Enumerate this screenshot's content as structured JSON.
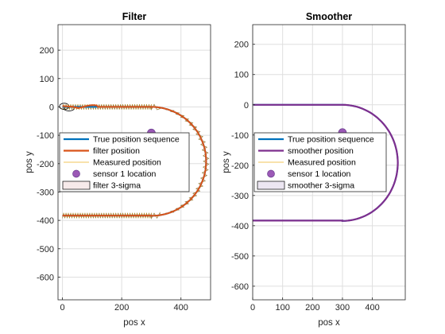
{
  "chart_data": [
    {
      "type": "line",
      "title": "Filter",
      "xlabel": "pos x",
      "ylabel": "pos y",
      "xlim": [
        -15,
        500
      ],
      "ylim": [
        -680,
        290
      ],
      "x_ticks": [
        0,
        200,
        400
      ],
      "y_ticks": [
        200,
        100,
        0,
        -100,
        -200,
        -300,
        -400,
        -500,
        -600
      ],
      "grid": true,
      "legend_position": "middle-left",
      "track": {
        "start_y": 0,
        "end_y": -383,
        "straight_until_x": 300,
        "turn_center_y": -192,
        "turn_radius_x": 185,
        "turn_radius_y": 192
      },
      "sensor_location": {
        "x": 300,
        "y": -92
      },
      "sigma_start": [
        {
          "x": 6,
          "y": 2,
          "w": 32,
          "h": 22
        },
        {
          "x": 22,
          "y": -6,
          "w": 34,
          "h": 16
        }
      ],
      "series": [
        {
          "name": "True position sequence",
          "color": "#0072BD",
          "kind": "line"
        },
        {
          "name": "filter position",
          "color": "#D95319",
          "kind": "line"
        },
        {
          "name": "Measured position",
          "color": "#EDB120",
          "kind": "line"
        },
        {
          "name": "sensor 1 location",
          "color": "#9B59B6",
          "kind": "marker"
        },
        {
          "name": "filter 3-sigma",
          "color": "#f7eaea",
          "kind": "patch"
        }
      ]
    },
    {
      "type": "line",
      "title": "Smoother",
      "xlabel": "pos x",
      "ylabel": "pos y",
      "xlim": [
        0,
        510
      ],
      "ylim": [
        -645,
        265
      ],
      "x_ticks": [
        0,
        100,
        200,
        300,
        400
      ],
      "y_ticks": [
        200,
        100,
        0,
        -100,
        -200,
        -300,
        -400,
        -500,
        -600
      ],
      "grid": true,
      "legend_position": "middle-left",
      "track": {
        "start_y": 0,
        "end_y": -383,
        "straight_until_x": 300,
        "turn_center_y": -192,
        "turn_radius_x": 185,
        "turn_radius_y": 192
      },
      "sensor_location": {
        "x": 300,
        "y": -92
      },
      "series": [
        {
          "name": "True position sequence",
          "color": "#0072BD",
          "kind": "line"
        },
        {
          "name": "smoother position",
          "color": "#7E2F8E",
          "kind": "line"
        },
        {
          "name": "Measured position",
          "color": "#EDB120",
          "kind": "line"
        },
        {
          "name": "sensor 1 location",
          "color": "#9B59B6",
          "kind": "marker"
        },
        {
          "name": "smoother 3-sigma",
          "color": "#ece6f2",
          "kind": "patch"
        }
      ]
    }
  ]
}
